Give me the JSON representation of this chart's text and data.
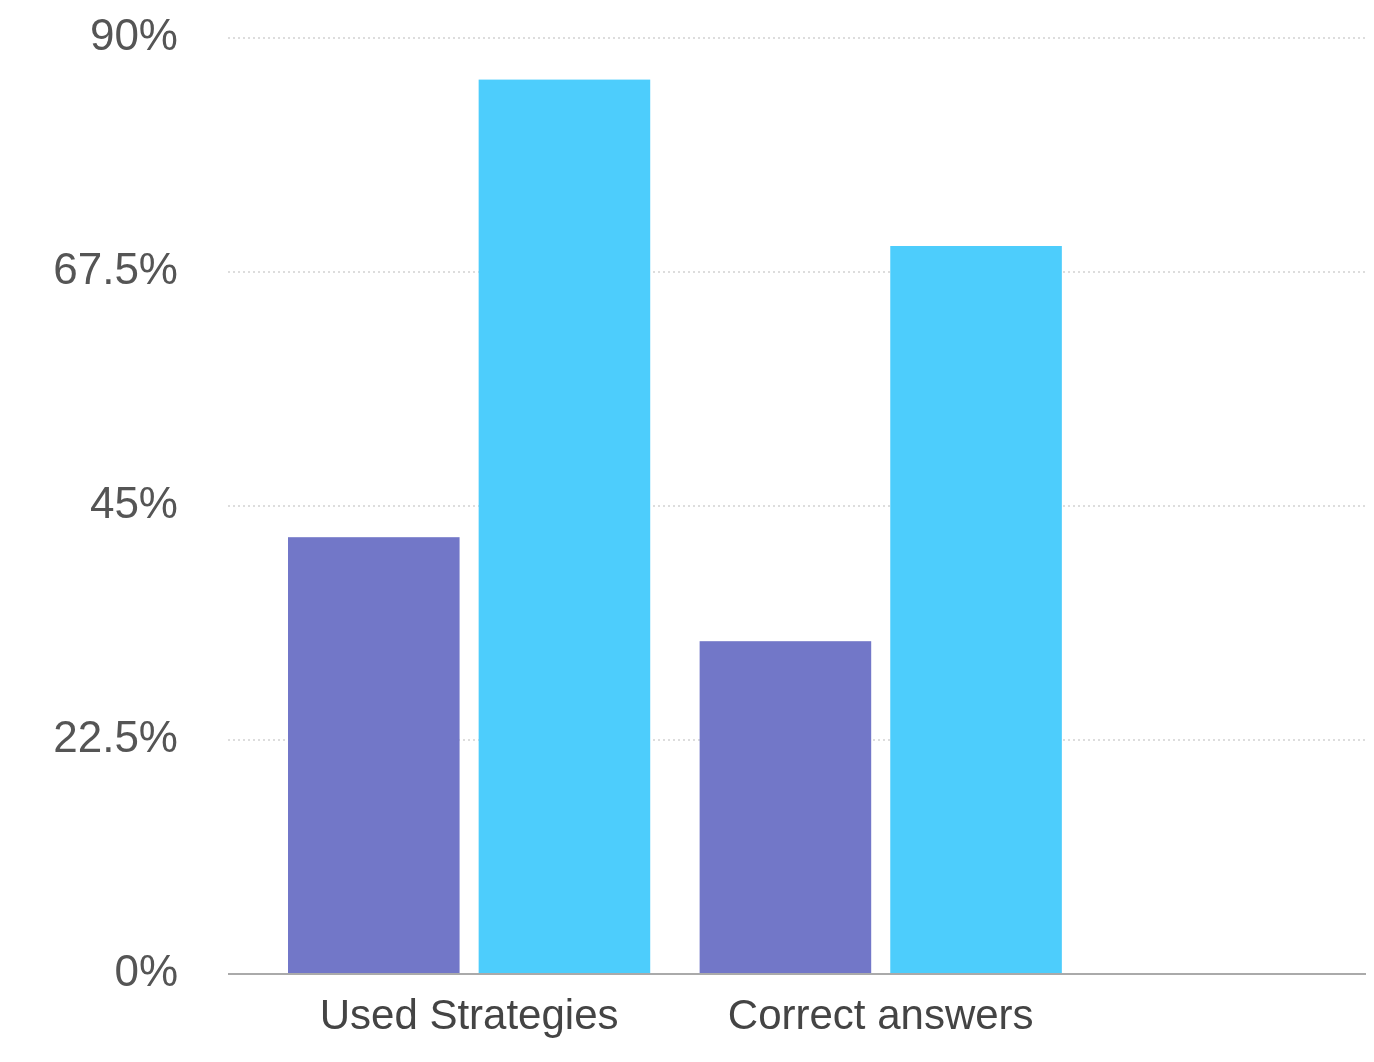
{
  "chart_data": {
    "type": "bar",
    "categories": [
      "Used Strategies",
      "Correct answers"
    ],
    "series": [
      {
        "color": "#7277c8",
        "values": [
          42,
          32
        ]
      },
      {
        "color": "#4dcdfc",
        "values": [
          86,
          70
        ]
      }
    ],
    "ylim": [
      0,
      90
    ],
    "yticks": [
      {
        "value": 0,
        "label": "0%"
      },
      {
        "value": 22.5,
        "label": "22.5%"
      },
      {
        "value": 45,
        "label": "45%"
      },
      {
        "value": 67.5,
        "label": "67.5%"
      },
      {
        "value": 90,
        "label": "90%"
      }
    ],
    "grid": "y"
  }
}
